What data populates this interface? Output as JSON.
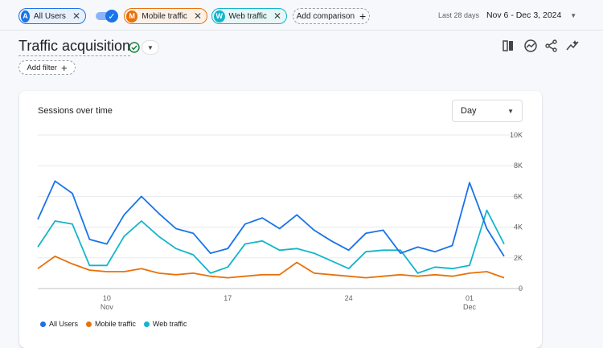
{
  "comparisons": [
    {
      "initial": "A",
      "label": "All Users",
      "color": "#1a73e8"
    },
    {
      "initial": "M",
      "label": "Mobile traffic",
      "color": "#e8710a"
    },
    {
      "initial": "W",
      "label": "Web traffic",
      "color": "#12b5cb"
    }
  ],
  "toggle_checked": true,
  "add_comparison_label": "Add comparison",
  "date_range": {
    "preset": "Last 28 days",
    "range": "Nov 6 - Dec 3, 2024"
  },
  "report": {
    "title": "Traffic acquisition",
    "add_filter_label": "Add filter"
  },
  "icons": {
    "status": "check-circle-icon",
    "tools": [
      "customize-report-icon",
      "insights-icon",
      "share-icon",
      "compare-icon"
    ]
  },
  "card": {
    "title": "Sessions over time",
    "granularity": "Day"
  },
  "chart_data": {
    "type": "line",
    "x": [
      "Nov 6",
      "Nov 7",
      "Nov 8",
      "Nov 9",
      "Nov 10",
      "Nov 11",
      "Nov 12",
      "Nov 13",
      "Nov 14",
      "Nov 15",
      "Nov 16",
      "Nov 17",
      "Nov 18",
      "Nov 19",
      "Nov 20",
      "Nov 21",
      "Nov 22",
      "Nov 23",
      "Nov 24",
      "Nov 25",
      "Nov 26",
      "Nov 27",
      "Nov 28",
      "Nov 29",
      "Nov 30",
      "Dec 1",
      "Dec 2",
      "Dec 3"
    ],
    "x_ticks": [
      {
        "x": "Nov 10",
        "label": "10",
        "sublabel": "Nov"
      },
      {
        "x": "Nov 17",
        "label": "17",
        "sublabel": ""
      },
      {
        "x": "Nov 24",
        "label": "24",
        "sublabel": ""
      },
      {
        "x": "Dec 1",
        "label": "01",
        "sublabel": "Dec"
      }
    ],
    "y_ticks": [
      {
        "value": 0,
        "label": "0"
      },
      {
        "value": 2000,
        "label": "2K"
      },
      {
        "value": 4000,
        "label": "4K"
      },
      {
        "value": 6000,
        "label": "6K"
      },
      {
        "value": 8000,
        "label": "8K"
      },
      {
        "value": 10000,
        "label": "10K"
      }
    ],
    "ylim": [
      0,
      10000
    ],
    "grid": true,
    "legend_position": "bottom-left",
    "series": [
      {
        "name": "All Users",
        "color": "#1a73e8",
        "values": [
          4500,
          7000,
          6200,
          3200,
          2900,
          4800,
          6000,
          4900,
          3900,
          3600,
          2300,
          2600,
          4200,
          4600,
          3900,
          4800,
          3800,
          3100,
          2500,
          3600,
          3800,
          2300,
          2700,
          2400,
          2800,
          6900,
          3900,
          2100
        ]
      },
      {
        "name": "Mobile traffic",
        "color": "#e8710a",
        "values": [
          1300,
          2100,
          1600,
          1200,
          1100,
          1100,
          1300,
          1000,
          900,
          1000,
          800,
          700,
          800,
          900,
          900,
          1700,
          1000,
          900,
          800,
          700,
          800,
          900,
          800,
          900,
          800,
          1000,
          1100,
          700
        ]
      },
      {
        "name": "Web traffic",
        "color": "#12b5cb",
        "values": [
          2700,
          4400,
          4200,
          1500,
          1500,
          3400,
          4400,
          3400,
          2600,
          2200,
          1000,
          1400,
          2900,
          3100,
          2500,
          2600,
          2300,
          1800,
          1300,
          2400,
          2500,
          2500,
          1000,
          1400,
          1300,
          1500,
          5100,
          2900
        ]
      }
    ]
  }
}
